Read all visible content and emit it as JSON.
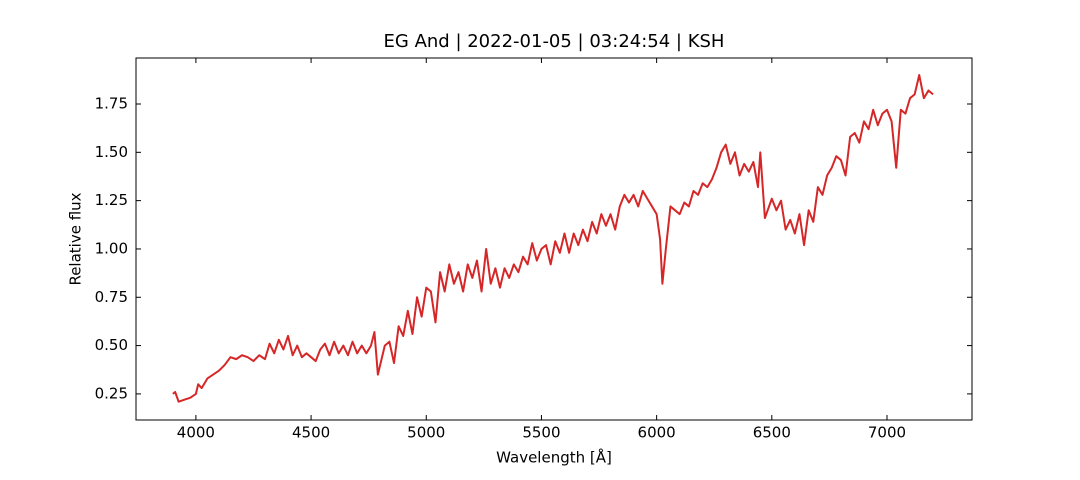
{
  "chart_data": {
    "type": "line",
    "title": "EG And | 2022-01-05 | 03:24:54 | KSH",
    "xlabel": "Wavelength [Å]",
    "ylabel": "Relative flux",
    "x": [
      3900,
      3910,
      3925,
      3950,
      3975,
      4000,
      4010,
      4025,
      4050,
      4075,
      4100,
      4125,
      4150,
      4175,
      4200,
      4225,
      4250,
      4275,
      4300,
      4320,
      4340,
      4360,
      4380,
      4400,
      4420,
      4440,
      4460,
      4480,
      4500,
      4520,
      4540,
      4560,
      4580,
      4600,
      4620,
      4640,
      4660,
      4680,
      4700,
      4720,
      4740,
      4760,
      4775,
      4790,
      4800,
      4820,
      4840,
      4860,
      4880,
      4900,
      4920,
      4940,
      4960,
      4980,
      5000,
      5020,
      5040,
      5060,
      5080,
      5100,
      5120,
      5140,
      5160,
      5180,
      5200,
      5220,
      5240,
      5260,
      5280,
      5300,
      5320,
      5340,
      5360,
      5380,
      5400,
      5420,
      5440,
      5460,
      5480,
      5500,
      5520,
      5540,
      5560,
      5580,
      5600,
      5620,
      5640,
      5660,
      5680,
      5700,
      5720,
      5740,
      5760,
      5780,
      5800,
      5820,
      5840,
      5860,
      5880,
      5900,
      5920,
      5940,
      5960,
      5980,
      6000,
      6015,
      6025,
      6040,
      6060,
      6080,
      6100,
      6120,
      6140,
      6160,
      6180,
      6200,
      6220,
      6240,
      6260,
      6280,
      6300,
      6320,
      6340,
      6360,
      6380,
      6400,
      6420,
      6440,
      6450,
      6470,
      6500,
      6520,
      6540,
      6560,
      6580,
      6600,
      6620,
      6640,
      6660,
      6680,
      6700,
      6720,
      6740,
      6760,
      6780,
      6800,
      6820,
      6840,
      6860,
      6880,
      6900,
      6920,
      6940,
      6960,
      6980,
      7000,
      7020,
      7040,
      7060,
      7080,
      7100,
      7120,
      7140,
      7160,
      7180,
      7200
    ],
    "series": [
      {
        "name": "EG And",
        "color": "#d62728",
        "values": [
          0.25,
          0.26,
          0.21,
          0.22,
          0.23,
          0.25,
          0.3,
          0.28,
          0.33,
          0.35,
          0.37,
          0.4,
          0.44,
          0.43,
          0.45,
          0.44,
          0.42,
          0.45,
          0.43,
          0.51,
          0.46,
          0.53,
          0.48,
          0.55,
          0.45,
          0.5,
          0.44,
          0.46,
          0.44,
          0.42,
          0.48,
          0.51,
          0.45,
          0.52,
          0.46,
          0.5,
          0.45,
          0.52,
          0.46,
          0.5,
          0.46,
          0.5,
          0.57,
          0.35,
          0.4,
          0.5,
          0.52,
          0.41,
          0.6,
          0.55,
          0.68,
          0.56,
          0.75,
          0.65,
          0.8,
          0.78,
          0.62,
          0.88,
          0.78,
          0.92,
          0.82,
          0.88,
          0.78,
          0.92,
          0.85,
          0.94,
          0.78,
          1.0,
          0.82,
          0.9,
          0.8,
          0.9,
          0.85,
          0.92,
          0.88,
          0.96,
          0.92,
          1.03,
          0.94,
          1.0,
          1.02,
          0.92,
          1.04,
          0.98,
          1.08,
          0.98,
          1.08,
          1.02,
          1.1,
          1.04,
          1.14,
          1.08,
          1.18,
          1.12,
          1.18,
          1.1,
          1.22,
          1.28,
          1.24,
          1.28,
          1.22,
          1.3,
          1.26,
          1.22,
          1.18,
          1.05,
          0.82,
          1.0,
          1.22,
          1.2,
          1.18,
          1.24,
          1.22,
          1.3,
          1.28,
          1.34,
          1.32,
          1.36,
          1.42,
          1.5,
          1.54,
          1.44,
          1.5,
          1.38,
          1.44,
          1.4,
          1.45,
          1.32,
          1.5,
          1.16,
          1.26,
          1.2,
          1.25,
          1.1,
          1.15,
          1.08,
          1.18,
          1.02,
          1.2,
          1.14,
          1.32,
          1.28,
          1.38,
          1.42,
          1.48,
          1.46,
          1.38,
          1.58,
          1.6,
          1.55,
          1.66,
          1.62,
          1.72,
          1.64,
          1.7,
          1.72,
          1.66,
          1.42,
          1.72,
          1.7,
          1.78,
          1.8,
          1.9,
          1.78,
          1.82,
          1.8
        ]
      }
    ],
    "xlim": [
      3740,
      7369
    ],
    "ylim": [
      0.115,
      1.988
    ],
    "xticks": [
      4000,
      4500,
      5000,
      5500,
      6000,
      6500,
      7000
    ],
    "yticks": [
      0.25,
      {
        "value": 0.5,
        "label": "0.50"
      },
      0.75,
      {
        "value": 1.0,
        "label": "1.00"
      },
      1.25,
      {
        "value": 1.5,
        "label": "1.50"
      },
      1.75
    ],
    "grid": false
  }
}
